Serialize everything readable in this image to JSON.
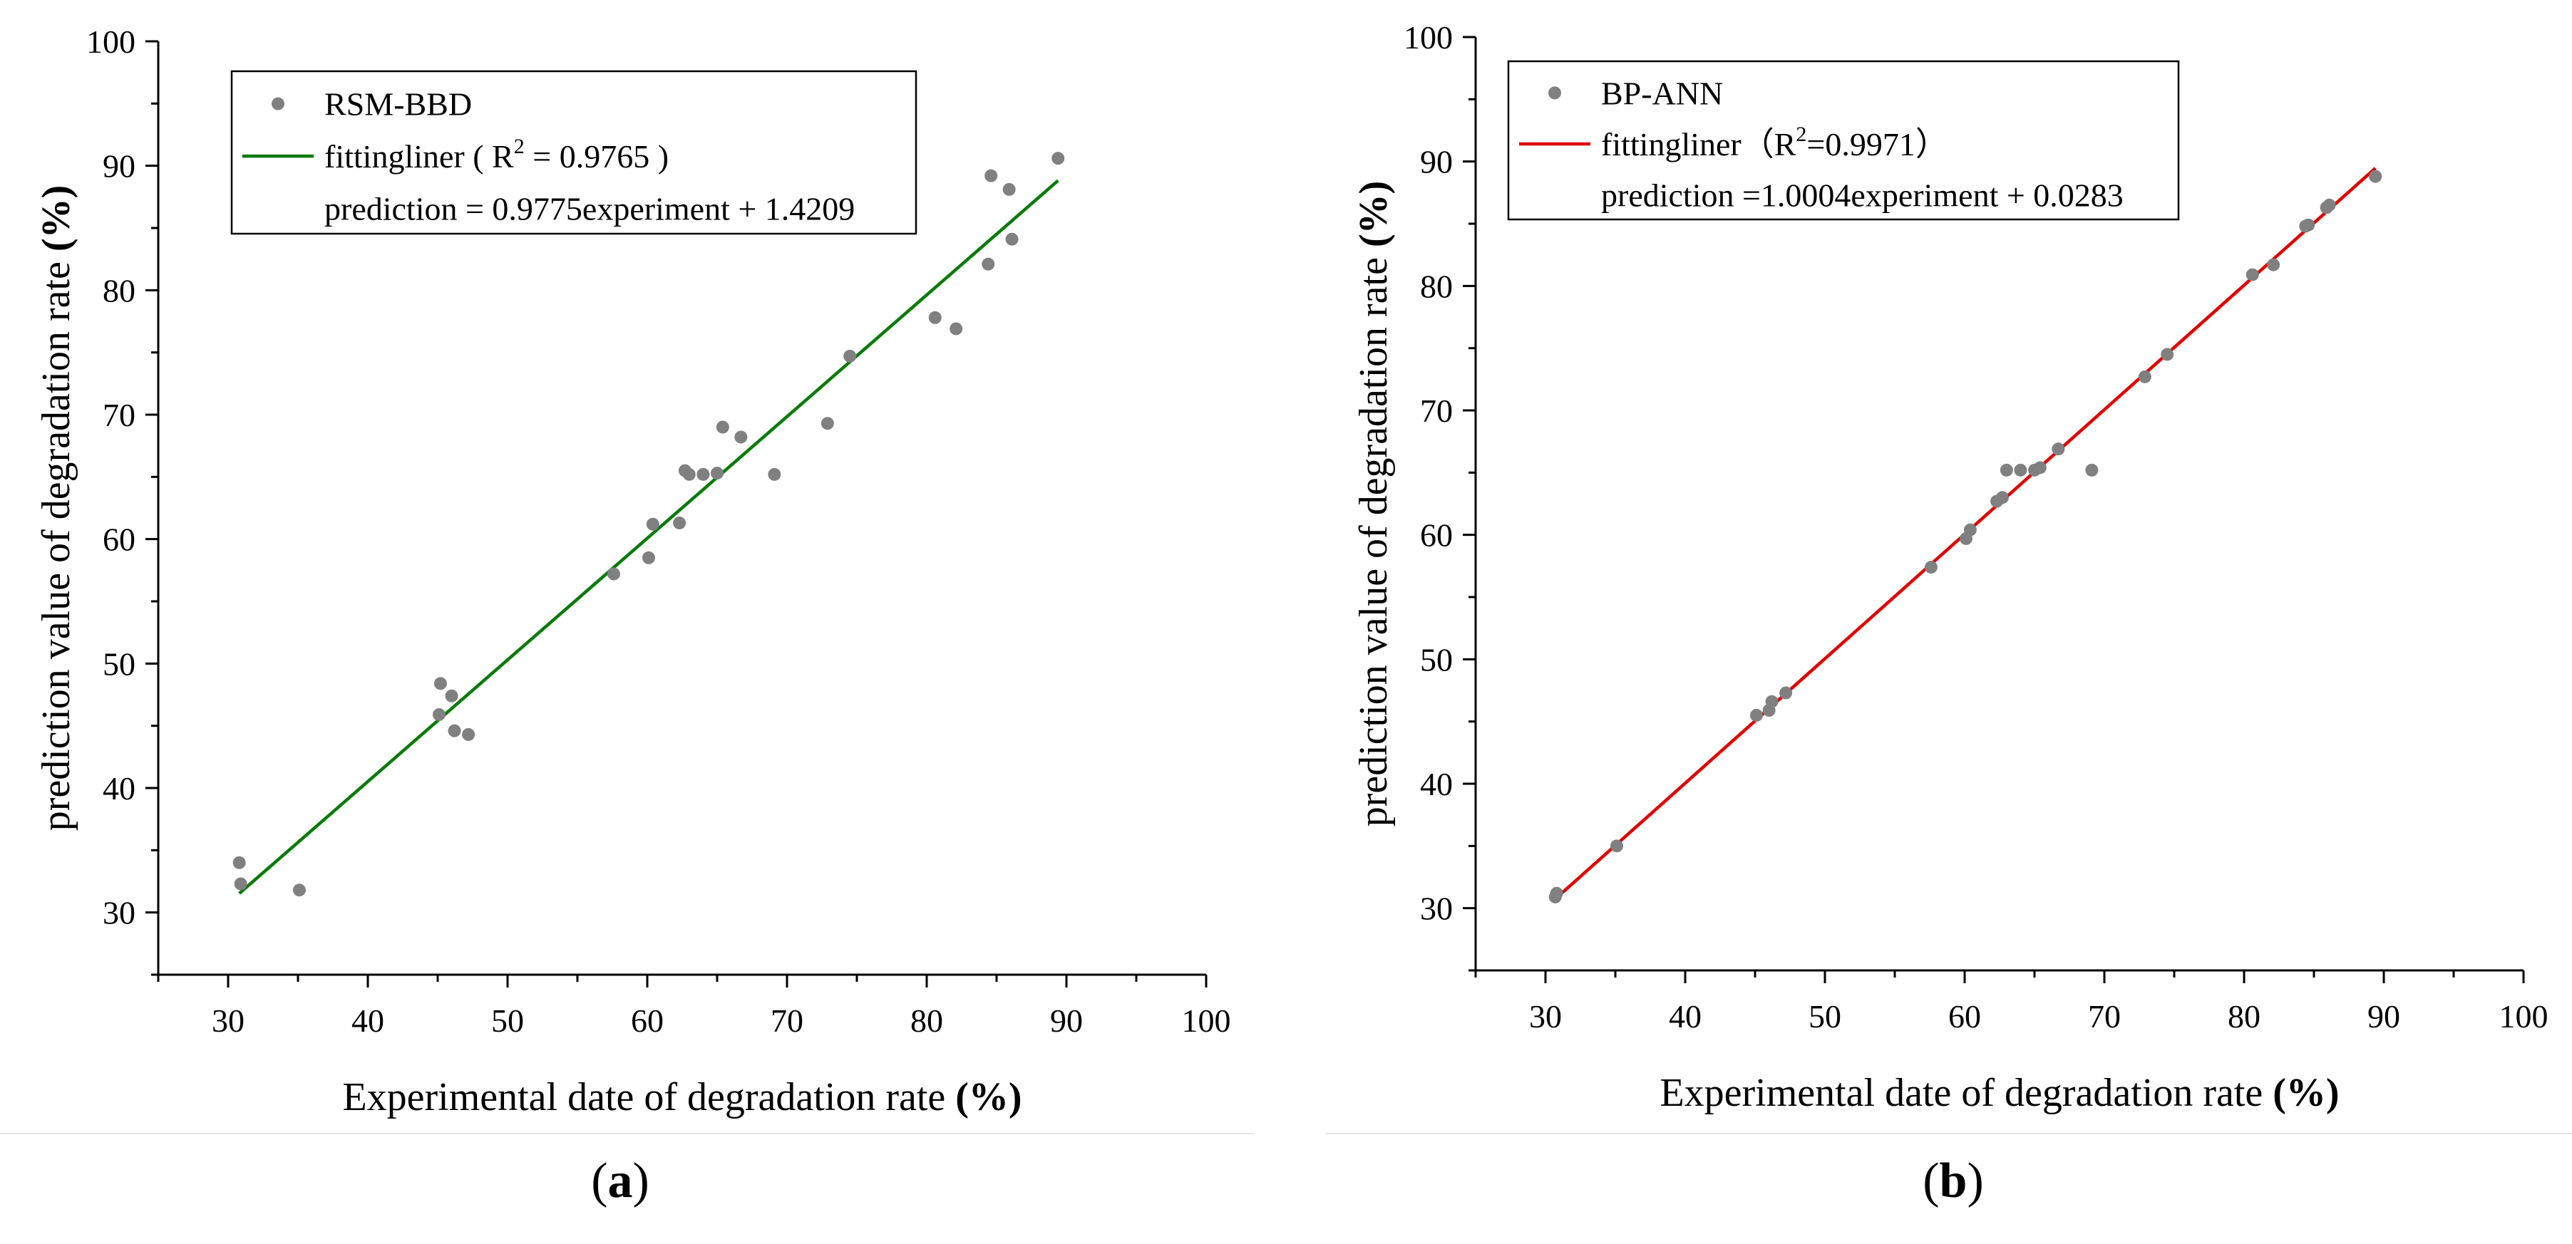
{
  "chart_data": [
    {
      "panel": "a",
      "type": "scatter",
      "xlabel": "Experimental date of degradation rate ",
      "xlabel_unit": "(%)",
      "ylabel": "prediction value of degradation rate ",
      "ylabel_unit": "(%)",
      "xlim": [
        25,
        100
      ],
      "ylim": [
        25,
        100
      ],
      "xticks": [
        30,
        40,
        50,
        60,
        70,
        80,
        90,
        100
      ],
      "yticks": [
        30,
        40,
        50,
        60,
        70,
        80,
        90,
        100
      ],
      "legend": {
        "placement": "top-left",
        "entries": [
          "RSM-BBD",
          "fittingliner ( R",
          "2",
          " = 0.9765 )",
          "prediction = 0.9775experiment + 1.4209"
        ]
      },
      "caption_letter": "a",
      "point_color": "#808080",
      "line_color": "#0a7a0a",
      "series": [
        {
          "name": "RSM-BBD",
          "points": [
            [
              30.8,
              34.0
            ],
            [
              30.9,
              32.3
            ],
            [
              35.1,
              31.8
            ],
            [
              45.1,
              45.9
            ],
            [
              45.2,
              48.4
            ],
            [
              46.0,
              47.4
            ],
            [
              46.2,
              44.6
            ],
            [
              47.2,
              44.3
            ],
            [
              57.6,
              57.2
            ],
            [
              60.1,
              58.5
            ],
            [
              60.4,
              61.2
            ],
            [
              62.3,
              61.3
            ],
            [
              62.7,
              65.5
            ],
            [
              63.0,
              65.2
            ],
            [
              64.0,
              65.2
            ],
            [
              65.0,
              65.3
            ],
            [
              65.4,
              69.0
            ],
            [
              66.7,
              68.2
            ],
            [
              69.1,
              65.2
            ],
            [
              72.9,
              69.3
            ],
            [
              74.5,
              74.7
            ],
            [
              80.6,
              77.8
            ],
            [
              82.1,
              76.9
            ],
            [
              84.4,
              82.1
            ],
            [
              84.6,
              89.2
            ],
            [
              85.9,
              88.1
            ],
            [
              86.1,
              84.1
            ],
            [
              89.4,
              90.6
            ]
          ]
        },
        {
          "name": "fittingliner",
          "type": "line",
          "x": [
            30.8,
            89.4
          ],
          "slope": 0.9775,
          "intercept": 1.4209
        }
      ]
    },
    {
      "panel": "b",
      "type": "scatter",
      "xlabel": "Experimental date of degradation rate ",
      "xlabel_unit": "(%)",
      "ylabel": "prediction value of degradation rate ",
      "ylabel_unit": "(%)",
      "xlim": [
        25,
        100
      ],
      "ylim": [
        25,
        100
      ],
      "xticks": [
        30,
        40,
        50,
        60,
        70,
        80,
        90,
        100
      ],
      "yticks": [
        30,
        40,
        50,
        60,
        70,
        80,
        90,
        100
      ],
      "legend": {
        "placement": "top-left",
        "entries": [
          "BP-ANN",
          "fittingliner（R",
          "2",
          "=0.9971）",
          "prediction =1.0004experiment + 0.0283"
        ]
      },
      "caption_letter": "b",
      "point_color": "#808080",
      "line_color": "#e00000",
      "series": [
        {
          "name": "BP-ANN",
          "points": [
            [
              30.7,
              30.9
            ],
            [
              30.8,
              31.2
            ],
            [
              35.1,
              35.0
            ],
            [
              45.1,
              45.5
            ],
            [
              46.0,
              45.9
            ],
            [
              46.2,
              46.6
            ],
            [
              47.2,
              47.3
            ],
            [
              57.6,
              57.4
            ],
            [
              60.1,
              59.7
            ],
            [
              60.4,
              60.4
            ],
            [
              62.3,
              62.7
            ],
            [
              62.7,
              63.0
            ],
            [
              63.0,
              65.2
            ],
            [
              64.0,
              65.2
            ],
            [
              65.0,
              65.2
            ],
            [
              65.4,
              65.4
            ],
            [
              66.7,
              66.9
            ],
            [
              69.1,
              65.2
            ],
            [
              72.9,
              72.7
            ],
            [
              74.5,
              74.5
            ],
            [
              80.6,
              80.9
            ],
            [
              82.1,
              81.7
            ],
            [
              84.4,
              84.8
            ],
            [
              84.6,
              84.9
            ],
            [
              85.9,
              86.3
            ],
            [
              86.1,
              86.5
            ],
            [
              89.4,
              88.8
            ]
          ]
        },
        {
          "name": "fittingliner",
          "type": "line",
          "x": [
            30.7,
            89.4
          ],
          "slope": 1.0004,
          "intercept": 0.0283
        }
      ]
    }
  ]
}
